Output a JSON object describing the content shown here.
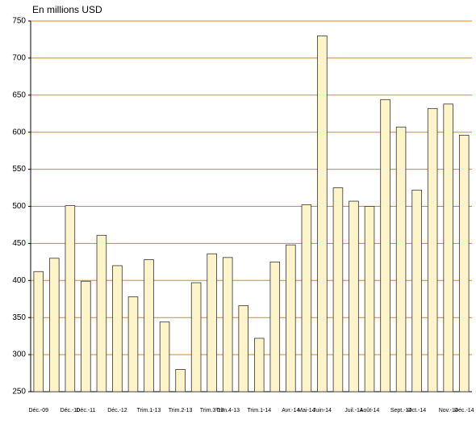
{
  "chart_data": {
    "type": "bar",
    "title": "En millions USD",
    "categories": [
      "Déc.-09",
      null,
      "Déc.-10",
      "Déc.-11",
      null,
      "Déc.-12",
      null,
      "Trim.1-13",
      null,
      "Trim.2-13",
      null,
      "Trim.3-13",
      "Trim.4-13",
      null,
      "Trim.1-14",
      null,
      "Avr.-14",
      "Mai-14",
      "Juin-14",
      null,
      "Juil.-14",
      "Août-14",
      null,
      "Sept.-14",
      "Oct.-14",
      null,
      "Nov.-14",
      "Déc.-14"
    ],
    "values": [
      412,
      430,
      501,
      399,
      461,
      420,
      378,
      428,
      344,
      280,
      397,
      436,
      431,
      366,
      322,
      425,
      448,
      502,
      730,
      525,
      507,
      500,
      644,
      607,
      522,
      632,
      638,
      596
    ],
    "color": "#fdf5c9",
    "ylim": [
      250,
      750
    ],
    "yticks": [
      250,
      300,
      350,
      400,
      450,
      500,
      550,
      600,
      650,
      700,
      750
    ],
    "grid": true
  }
}
